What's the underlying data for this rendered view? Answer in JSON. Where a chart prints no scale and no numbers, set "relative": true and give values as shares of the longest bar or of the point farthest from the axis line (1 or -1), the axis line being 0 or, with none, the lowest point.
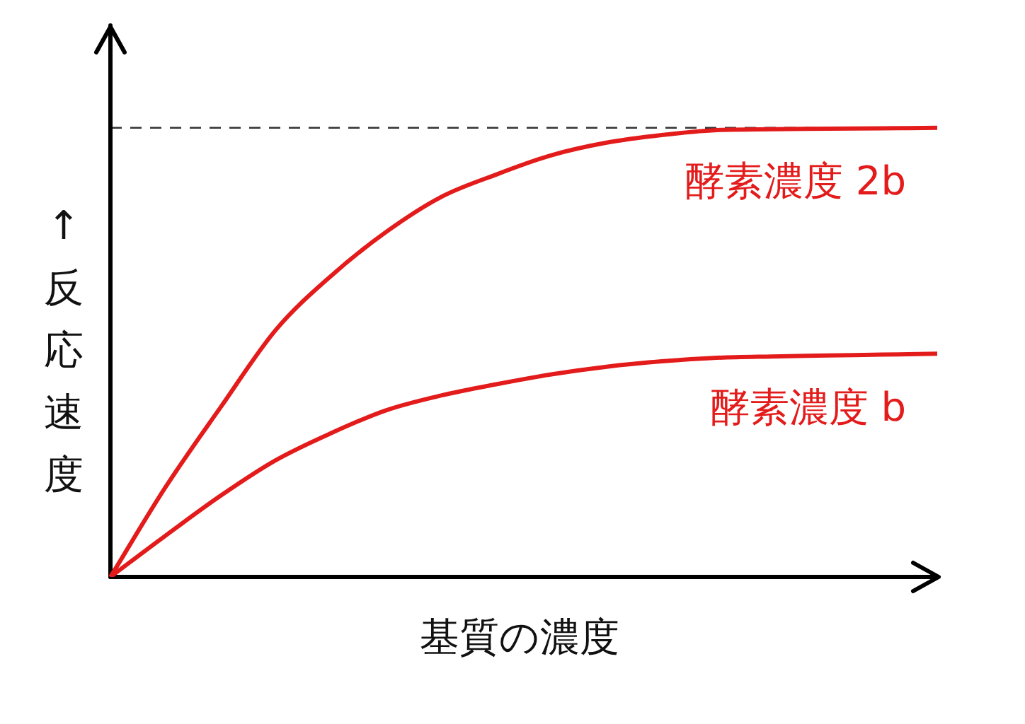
{
  "chart_data": {
    "type": "line",
    "relative": true,
    "xlabel": "基質の濃度",
    "ylabel": "↑反応速度",
    "legend": false,
    "marker": "none",
    "categories": [
      null,
      null,
      null,
      null,
      null,
      null,
      null,
      null,
      null,
      null,
      null,
      null,
      null,
      null,
      null,
      null
    ],
    "series": [
      {
        "name": "酵素濃度 2b",
        "color": "#e31b1b",
        "values": [
          0,
          0.2,
          0.378,
          0.55,
          0.67,
          0.768,
          0.846,
          0.896,
          0.939,
          0.967,
          0.984,
          0.995,
          0.997,
          0.998,
          0.999,
          1
        ]
      },
      {
        "name": "酵素濃度 b",
        "color": "#e31b1b",
        "values": [
          0,
          0.092,
          0.181,
          0.26,
          0.32,
          0.371,
          0.404,
          0.429,
          0.451,
          0.468,
          0.48,
          0.488,
          0.491,
          0.493,
          0.495,
          0.497
        ]
      }
    ],
    "ref_lines": [
      {
        "axis": "y",
        "value": 1,
        "color": "#333333",
        "line_style": "dashed"
      }
    ]
  }
}
